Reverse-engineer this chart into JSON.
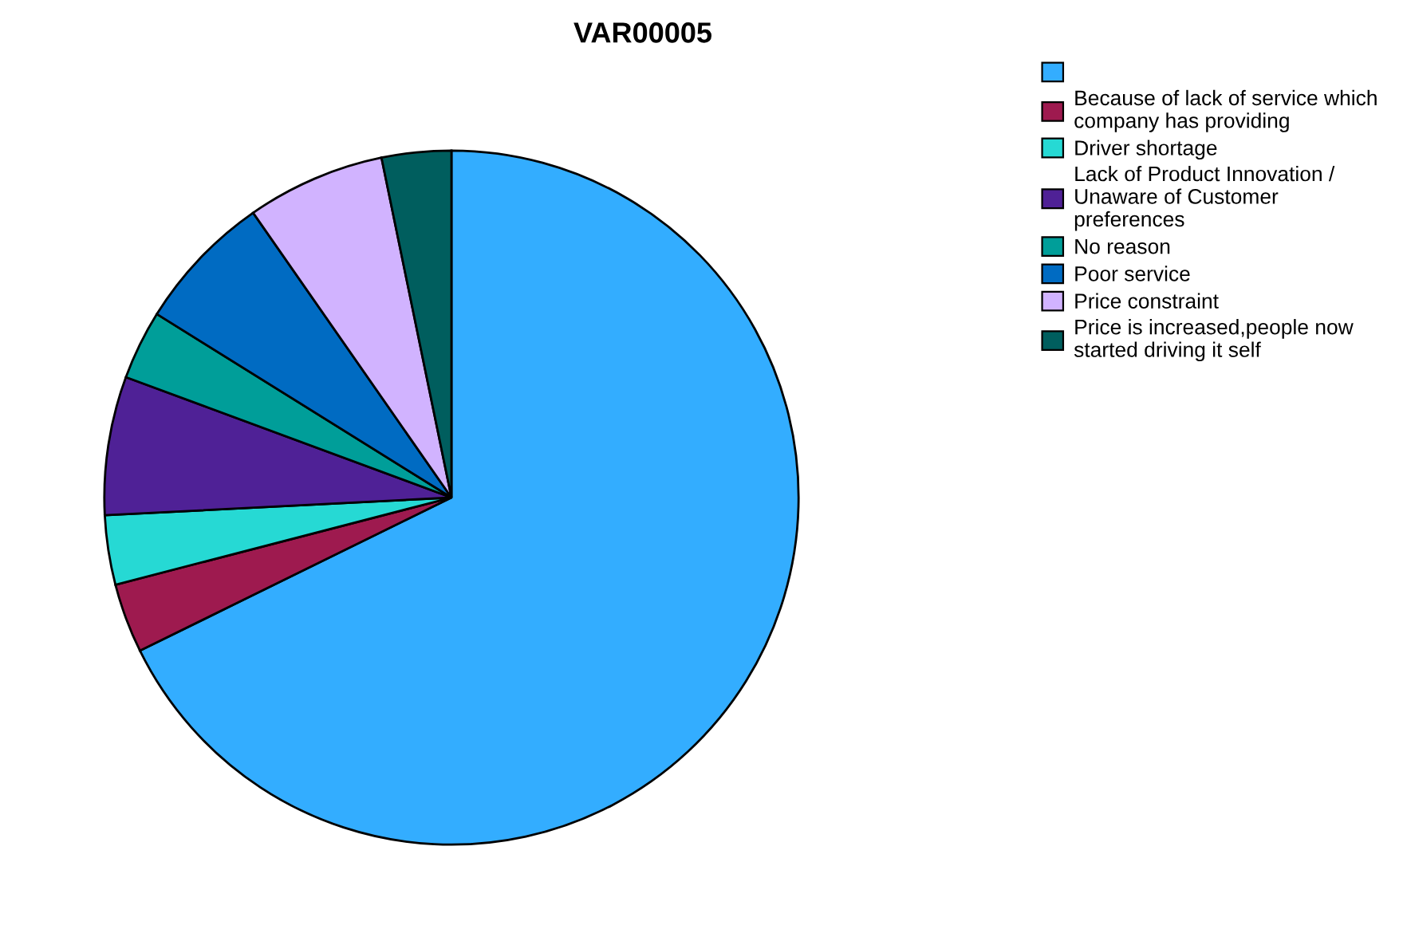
{
  "chart_data": {
    "type": "pie",
    "title": "VAR00005",
    "categories": [
      null,
      "Because of lack of service which\ncompany has providing",
      "Driver shortage",
      "Lack of Product Innovation /\nUnaware of Customer\npreferences",
      "No reason",
      "Poor service",
      "Price constraint",
      "Price is increased,people now\nstarted driving it self"
    ],
    "values": [
      67.73,
      3.23,
      3.23,
      6.45,
      3.23,
      6.45,
      6.45,
      3.23
    ],
    "colors": [
      "#33adff",
      "#9e1a4f",
      "#26d9d4",
      "#4f2196",
      "#009e99",
      "#006bc2",
      "#d1b3ff",
      "#005e5e"
    ],
    "legend": "right"
  }
}
